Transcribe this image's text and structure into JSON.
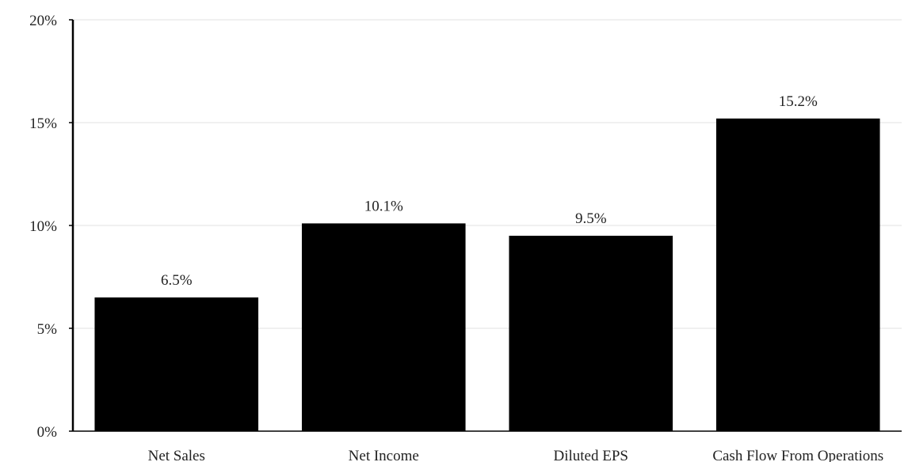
{
  "chart_data": {
    "type": "bar",
    "categories": [
      "Net Sales",
      "Net Income",
      "Diluted EPS",
      "Cash Flow From Operations"
    ],
    "values": [
      6.5,
      10.1,
      9.5,
      15.2
    ],
    "data_labels": [
      "6.5%",
      "10.1%",
      "9.5%",
      "15.2%"
    ],
    "ylim": [
      0,
      20
    ],
    "yticks": [
      0,
      5,
      10,
      15,
      20
    ],
    "ytick_labels": [
      "0%",
      "5%",
      "10%",
      "15%",
      "20%"
    ],
    "grid": true,
    "legend": "none",
    "title": "",
    "xlabel": "",
    "ylabel": "",
    "colors": {
      "bar": "#000000",
      "grid": "#e6e6e6",
      "axis": "#000000"
    }
  }
}
